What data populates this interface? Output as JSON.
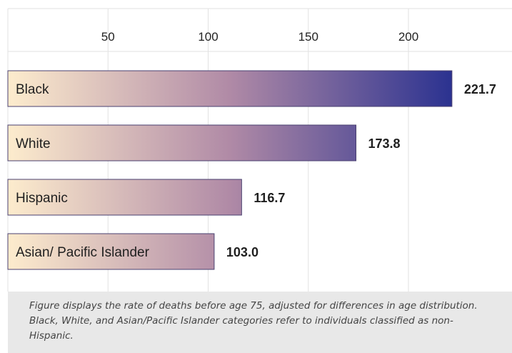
{
  "chart_data": {
    "type": "bar",
    "orientation": "horizontal",
    "categories": [
      "Black",
      "White",
      "Hispanic",
      "Asian/ Pacific Islander"
    ],
    "values": [
      221.7,
      173.8,
      116.7,
      103.0
    ],
    "value_labels": [
      "221.7",
      "173.8",
      "116.7",
      "103.0"
    ],
    "xticks": [
      50,
      100,
      150,
      200
    ],
    "xlim": [
      0,
      250
    ],
    "axis_position": "top",
    "grid": true,
    "title": "",
    "xlabel": "",
    "ylabel": "",
    "colors": {
      "gradient_start": "#fdeccd",
      "gradient_mid": "#b08aa6",
      "gradient_end": "#2b3290",
      "bar_border": "#4a4070",
      "grid": "#e2e2e2",
      "footnote_bg": "#e8e8e8"
    }
  },
  "footnote": "Figure displays the rate of deaths before age 75, adjusted for differences in age distribution. Black, White, and Asian/Pacific Islander categories refer to individuals classified as non-Hispanic."
}
